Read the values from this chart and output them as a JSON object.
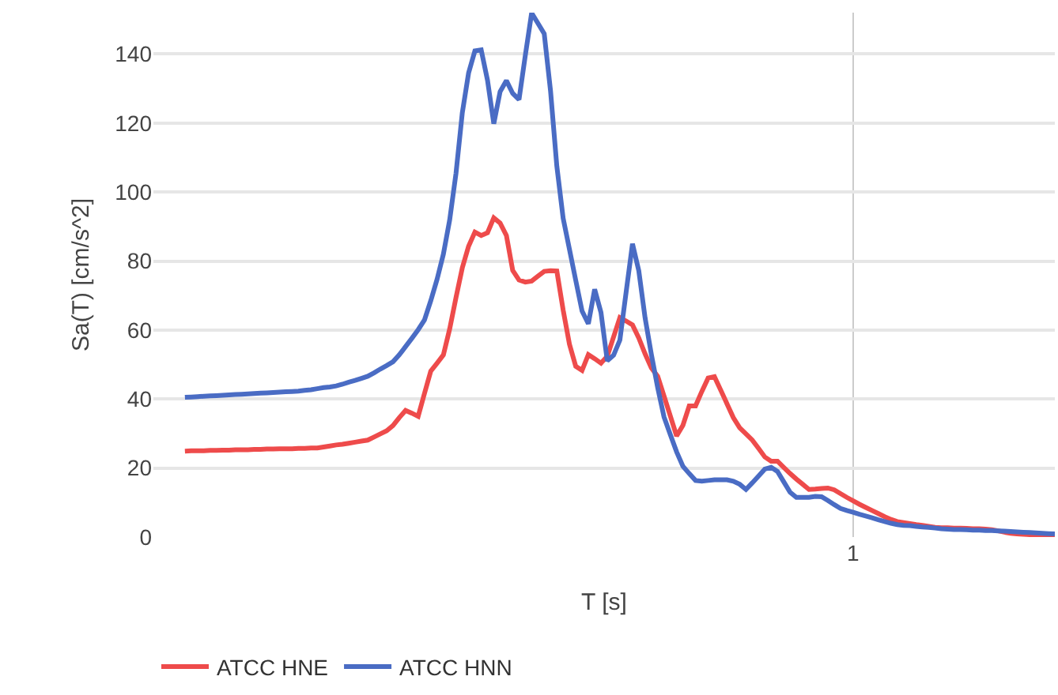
{
  "chart_data": {
    "type": "line",
    "xlabel": "T [s]",
    "ylabel": "Sa(T) [cm/s^2]",
    "categories": [
      null,
      null,
      null,
      null,
      null,
      null,
      null,
      null,
      null,
      null,
      null,
      null,
      null,
      null,
      null,
      null,
      null,
      null,
      null,
      null,
      null,
      null,
      null,
      null,
      null,
      null,
      null,
      null,
      null,
      null,
      null,
      null,
      null,
      null,
      null,
      null,
      null,
      null,
      null,
      null,
      null,
      null,
      null,
      null,
      null,
      null,
      null,
      null,
      null,
      null,
      null,
      null,
      null,
      null,
      null,
      null,
      null,
      null,
      null,
      null,
      null,
      null,
      null,
      null,
      null,
      null,
      null,
      null,
      null,
      null,
      null,
      null,
      null,
      null,
      null,
      null,
      null,
      null,
      null,
      null,
      null,
      null,
      null,
      null,
      null,
      null,
      null,
      null,
      null,
      null,
      null,
      null,
      null,
      null,
      null,
      null,
      null,
      null,
      null,
      null,
      null,
      null,
      null,
      null,
      null,
      null,
      "1",
      null,
      null,
      null,
      null,
      null,
      null,
      null,
      null,
      null,
      null,
      null,
      null,
      null,
      null,
      null,
      null,
      null,
      null,
      null,
      null,
      null,
      null,
      null,
      null,
      null,
      null,
      null,
      null,
      null,
      null,
      null,
      null
    ],
    "ylim": [
      0,
      152
    ],
    "yticks": [
      0,
      20,
      40,
      60,
      80,
      100,
      120,
      140
    ],
    "grid": true,
    "legend": "bottom left",
    "marker": "none",
    "line_style": "solid",
    "series": [
      {
        "name": "ATCC HNE",
        "color": "#ee4b4b",
        "values": [
          24.9,
          25,
          25,
          25,
          25.1,
          25.1,
          25.2,
          25.2,
          25.3,
          25.3,
          25.3,
          25.4,
          25.4,
          25.5,
          25.5,
          25.6,
          25.6,
          25.6,
          25.7,
          25.7,
          25.8,
          25.8,
          26.1,
          26.4,
          26.7,
          26.9,
          27.2,
          27.5,
          27.8,
          28.1,
          29,
          29.9,
          30.8,
          32.3,
          34.6,
          36.7,
          35.9,
          35,
          41.6,
          48.1,
          50.4,
          52.8,
          60.3,
          69.4,
          78,
          84.3,
          88.4,
          87.4,
          88.2,
          92.5,
          91,
          87.4,
          77.3,
          74.5,
          73.9,
          74.2,
          75.6,
          77,
          77.2,
          77.1,
          65.8,
          55.9,
          49.5,
          48.3,
          52.9,
          51.7,
          50.4,
          52.4,
          58,
          63.6,
          62.6,
          61.5,
          57.7,
          53.1,
          49,
          46.6,
          40.9,
          35.1,
          29.3,
          32.4,
          38,
          38,
          42.2,
          46.1,
          46.5,
          42.6,
          38.6,
          34.6,
          31.7,
          29.9,
          28.1,
          25.7,
          23.2,
          22,
          22,
          20.2,
          18.4,
          16.8,
          15.3,
          13.8,
          13.9,
          14.1,
          14.2,
          13.7,
          12.6,
          11.5,
          10.5,
          9.5,
          8.6,
          7.7,
          6.8,
          5.9,
          5.1,
          4.5,
          4.2,
          3.9,
          3.6,
          3.4,
          3.1,
          2.8,
          2.7,
          2.7,
          2.6,
          2.6,
          2.5,
          2.4,
          2.4,
          2.3,
          2.1,
          1.8,
          1.4,
          1.1,
          0.9,
          0.8,
          0.7,
          0.7,
          0.6,
          0.6,
          0.5
        ]
      },
      {
        "name": "ATCC HNN",
        "color": "#4a6cc4",
        "values": [
          40.5,
          40.6,
          40.7,
          40.8,
          40.9,
          41,
          41.1,
          41.2,
          41.3,
          41.4,
          41.5,
          41.6,
          41.7,
          41.8,
          41.9,
          42,
          42.1,
          42.2,
          42.3,
          42.5,
          42.7,
          43,
          43.3,
          43.5,
          43.8,
          44.3,
          44.9,
          45.4,
          46,
          46.6,
          47.6,
          48.7,
          49.7,
          50.8,
          52.8,
          55.2,
          57.6,
          60.1,
          62.9,
          68.5,
          74.7,
          82,
          91.9,
          105.4,
          122.9,
          134.5,
          140.9,
          141.2,
          132.4,
          119.8,
          129.1,
          132.3,
          128.6,
          126.8,
          139.6,
          151.9,
          148.9,
          145.9,
          129.3,
          107.5,
          92.4,
          83.4,
          74.4,
          65.5,
          61.8,
          71.8,
          65.1,
          51.1,
          52.7,
          57.1,
          71.1,
          85,
          77.2,
          63.5,
          52.9,
          43.3,
          34.8,
          29.7,
          24.7,
          20.5,
          18.4,
          16.4,
          16.2,
          16.4,
          16.6,
          16.6,
          16.6,
          16.2,
          15.3,
          13.8,
          15.7,
          17.7,
          19.7,
          20.2,
          19,
          16,
          13,
          11.5,
          11.5,
          11.5,
          11.8,
          11.7,
          10.6,
          9.4,
          8.3,
          7.7,
          7.2,
          6.6,
          6.1,
          5.6,
          5,
          4.5,
          4,
          3.6,
          3.4,
          3.3,
          3.1,
          2.9,
          2.8,
          2.6,
          2.4,
          2.3,
          2.2,
          2.2,
          2.1,
          2,
          2,
          1.9,
          1.9,
          1.8,
          1.7,
          1.6,
          1.5,
          1.4,
          1.3,
          1.2,
          1.1,
          1,
          0.9
        ]
      }
    ]
  }
}
